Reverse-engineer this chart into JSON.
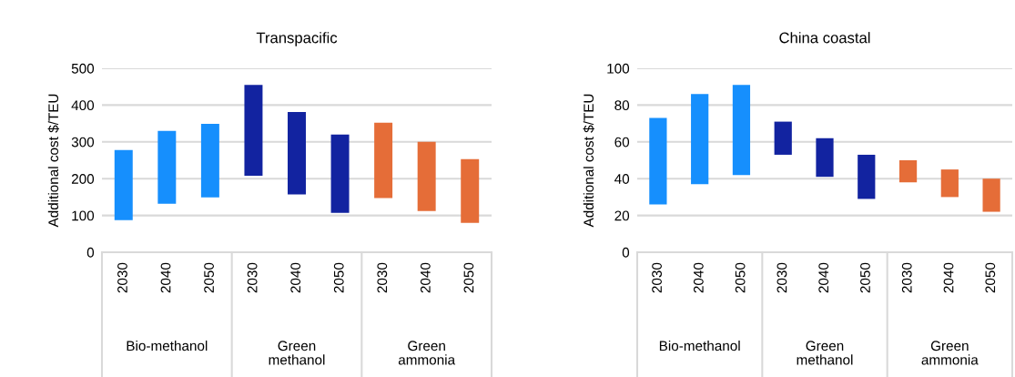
{
  "chart_data": [
    {
      "type": "bar",
      "title": "Transpacific",
      "ylabel": "Additional cost $/TEU",
      "categories": [
        "2030",
        "2040",
        "2050",
        "2030",
        "2040",
        "2050",
        "2030",
        "2040",
        "2050"
      ],
      "base": [
        87,
        132,
        149,
        208,
        157,
        107,
        147,
        112,
        80
      ],
      "values": [
        191,
        198,
        200,
        247,
        224,
        213,
        205,
        188,
        173
      ],
      "colors": [
        "#168ffd",
        "#168ffd",
        "#168ffd",
        "#1223a0",
        "#1223a0",
        "#1223a0",
        "#e56d38",
        "#e56d38",
        "#e56d38"
      ],
      "ylim": [
        0,
        500
      ],
      "yticks": [
        0,
        100,
        200,
        300,
        400,
        500
      ],
      "grid": "y",
      "annotations": [
        "Bio-methanol",
        "Green\nmethanol",
        "Green\nammonia"
      ]
    },
    {
      "type": "bar",
      "title": "China coastal",
      "ylabel": "Additional cost $/TEU",
      "categories": [
        "2030",
        "2040",
        "2050",
        "2030",
        "2040",
        "2050",
        "2030",
        "2040",
        "2050"
      ],
      "base": [
        26,
        37,
        42,
        53,
        41,
        29,
        38,
        30,
        22
      ],
      "values": [
        47,
        49,
        49,
        18,
        21,
        24,
        12,
        15,
        18
      ],
      "colors": [
        "#168ffd",
        "#168ffd",
        "#168ffd",
        "#1223a0",
        "#1223a0",
        "#1223a0",
        "#e56d38",
        "#e56d38",
        "#e56d38"
      ],
      "ylim": [
        0,
        100
      ],
      "yticks": [
        0,
        20,
        40,
        60,
        80,
        100
      ],
      "grid": "y",
      "annotations": [
        "Bio-methanol",
        "Green\nmethanol",
        "Green\nammonia"
      ]
    }
  ]
}
